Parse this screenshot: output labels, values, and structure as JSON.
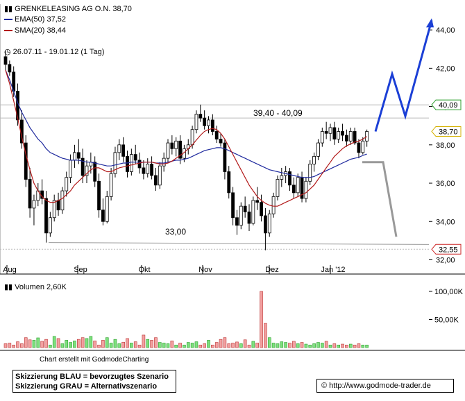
{
  "header": {
    "title": "GRENKELEASING AG O.N. 38,70",
    "ema_label": "EMA(50) 37,52",
    "sma_label": "SMA(20) 38,44",
    "period": "26.07.11 - 19.01.12 (1 Tag)",
    "ema_color": "#1f2a9e",
    "sma_color": "#b31b1b"
  },
  "volume": {
    "label": "Volumen 2,60K"
  },
  "footer": {
    "credit": "Chart erstellt mit GodmodeCharting",
    "note_blue": "Skizzierung BLAU = bevorzugtes Szenario",
    "note_gray": "Skizzierung GRAU = Alternativszenario",
    "url": "© http://www.godmode-trader.de"
  },
  "chart_data": {
    "type": "candlestick",
    "x_labels": [
      "Aug",
      "Sep",
      "Okt",
      "Nov",
      "Dez",
      "Jan '12"
    ],
    "y_ticks": [
      "44,00",
      "42,00",
      "40,00",
      "38,00",
      "36,00",
      "34,00",
      "32,00"
    ],
    "ylim": [
      31.8,
      45.2
    ],
    "price_markers": [
      {
        "label": "40,09",
        "value": 40.09,
        "color": "#2a9d2a"
      },
      {
        "label": "38,70",
        "value": 38.7,
        "color": "#d4b000"
      },
      {
        "label": "32,55",
        "value": 32.55,
        "color": "#cc2222"
      }
    ],
    "annotations": [
      {
        "text": "39,40 - 40,09",
        "value": 39.4
      },
      {
        "text": "33,00",
        "value": 33.0
      }
    ],
    "support_line": {
      "from": 32.9,
      "to": 32.9
    },
    "volume_ticks": [
      "100,00K",
      "50,00K"
    ],
    "volume_max": 2.6,
    "ohlc": [
      [
        42.6,
        42.9,
        41.9,
        42.2
      ],
      [
        42.2,
        42.4,
        41.6,
        41.8
      ],
      [
        41.8,
        42.1,
        40.5,
        40.8
      ],
      [
        40.8,
        41.2,
        39.0,
        39.3
      ],
      [
        39.3,
        39.8,
        37.8,
        38.1
      ],
      [
        38.1,
        38.5,
        35.8,
        36.2
      ],
      [
        36.2,
        36.8,
        34.2,
        34.7
      ],
      [
        34.7,
        35.4,
        33.8,
        35.1
      ],
      [
        35.1,
        36.0,
        34.8,
        35.6
      ],
      [
        35.6,
        36.2,
        34.9,
        35.2
      ],
      [
        35.2,
        35.6,
        32.9,
        33.4
      ],
      [
        33.4,
        34.5,
        33.2,
        34.2
      ],
      [
        34.2,
        35.4,
        34.0,
        35.1
      ],
      [
        35.1,
        35.5,
        34.3,
        34.6
      ],
      [
        34.6,
        35.8,
        34.4,
        35.6
      ],
      [
        35.6,
        36.6,
        35.3,
        36.3
      ],
      [
        36.3,
        37.5,
        36.0,
        37.2
      ],
      [
        37.2,
        38.0,
        36.8,
        37.6
      ],
      [
        37.6,
        38.3,
        37.0,
        37.3
      ],
      [
        37.3,
        37.8,
        36.0,
        36.4
      ],
      [
        36.4,
        37.2,
        36.0,
        36.9
      ],
      [
        36.9,
        37.6,
        36.5,
        37.1
      ],
      [
        37.1,
        37.4,
        35.8,
        36.1
      ],
      [
        36.1,
        36.5,
        34.2,
        34.6
      ],
      [
        34.6,
        35.2,
        33.8,
        34.0
      ],
      [
        34.0,
        35.6,
        33.9,
        35.3
      ],
      [
        35.3,
        36.8,
        35.1,
        36.5
      ],
      [
        36.5,
        37.9,
        36.3,
        37.6
      ],
      [
        37.6,
        38.3,
        37.2,
        38.0
      ],
      [
        38.0,
        38.4,
        37.1,
        37.4
      ],
      [
        37.4,
        37.7,
        36.3,
        36.6
      ],
      [
        36.6,
        37.8,
        36.4,
        37.5
      ],
      [
        37.5,
        38.0,
        37.0,
        37.2
      ],
      [
        37.2,
        37.6,
        36.5,
        36.8
      ],
      [
        36.8,
        37.2,
        36.2,
        36.5
      ],
      [
        36.5,
        37.3,
        36.3,
        37.0
      ],
      [
        37.0,
        37.4,
        36.2,
        36.4
      ],
      [
        36.4,
        36.8,
        35.6,
        35.9
      ],
      [
        35.9,
        37.1,
        35.7,
        36.9
      ],
      [
        36.9,
        37.6,
        36.6,
        37.3
      ],
      [
        37.3,
        38.3,
        37.1,
        38.1
      ],
      [
        38.1,
        38.5,
        37.5,
        37.8
      ],
      [
        37.8,
        38.4,
        37.4,
        38.2
      ],
      [
        38.2,
        38.5,
        37.0,
        37.3
      ],
      [
        37.3,
        38.0,
        37.1,
        37.8
      ],
      [
        37.8,
        38.3,
        37.5,
        38.0
      ],
      [
        38.0,
        39.0,
        37.8,
        38.8
      ],
      [
        38.8,
        39.8,
        38.6,
        39.6
      ],
      [
        39.6,
        40.1,
        39.2,
        39.4
      ],
      [
        39.4,
        39.8,
        38.8,
        39.0
      ],
      [
        39.0,
        39.5,
        38.6,
        39.3
      ],
      [
        39.3,
        39.6,
        38.5,
        38.7
      ],
      [
        38.7,
        39.0,
        38.1,
        38.3
      ],
      [
        38.3,
        38.6,
        37.9,
        38.1
      ],
      [
        38.1,
        38.3,
        36.2,
        36.6
      ],
      [
        36.6,
        36.9,
        35.2,
        35.5
      ],
      [
        35.5,
        35.8,
        33.8,
        34.2
      ],
      [
        34.2,
        34.6,
        33.3,
        33.8
      ],
      [
        33.8,
        35.0,
        33.6,
        34.8
      ],
      [
        34.8,
        35.3,
        34.2,
        34.5
      ],
      [
        34.5,
        34.9,
        33.5,
        33.9
      ],
      [
        33.9,
        35.3,
        33.8,
        35.1
      ],
      [
        35.1,
        35.8,
        34.6,
        35.0
      ],
      [
        35.0,
        35.4,
        34.0,
        34.3
      ],
      [
        34.3,
        34.7,
        32.5,
        33.4
      ],
      [
        33.4,
        34.6,
        33.2,
        34.4
      ],
      [
        34.4,
        35.5,
        34.2,
        35.3
      ],
      [
        35.3,
        36.4,
        35.1,
        36.2
      ],
      [
        36.2,
        36.8,
        35.8,
        36.4
      ],
      [
        36.4,
        36.9,
        36.0,
        36.6
      ],
      [
        36.6,
        36.8,
        35.6,
        35.9
      ],
      [
        35.9,
        36.3,
        35.2,
        35.5
      ],
      [
        35.5,
        36.5,
        35.3,
        36.3
      ],
      [
        36.3,
        36.6,
        35.0,
        35.2
      ],
      [
        35.2,
        36.3,
        35.0,
        36.1
      ],
      [
        36.1,
        37.2,
        35.9,
        37.0
      ],
      [
        37.0,
        37.6,
        36.6,
        37.4
      ],
      [
        37.4,
        38.3,
        37.2,
        38.1
      ],
      [
        38.1,
        38.9,
        37.9,
        38.7
      ],
      [
        38.7,
        39.2,
        38.3,
        38.6
      ],
      [
        38.6,
        39.1,
        38.2,
        38.9
      ],
      [
        38.9,
        39.2,
        38.0,
        38.3
      ],
      [
        38.3,
        38.9,
        38.1,
        38.7
      ],
      [
        38.7,
        39.1,
        38.2,
        38.5
      ],
      [
        38.5,
        38.8,
        37.9,
        38.2
      ],
      [
        38.2,
        38.9,
        38.0,
        38.7
      ],
      [
        38.7,
        38.9,
        38.0,
        38.1
      ],
      [
        38.1,
        38.3,
        37.3,
        37.6
      ],
      [
        37.6,
        38.4,
        37.5,
        38.2
      ],
      [
        38.2,
        38.8,
        37.9,
        38.7
      ]
    ],
    "ema50": [
      41.9,
      41.4,
      40.8,
      40.2,
      39.7,
      39.3,
      38.9,
      38.6,
      38.3,
      38.1,
      37.8,
      37.6,
      37.5,
      37.4,
      37.3,
      37.25,
      37.2,
      37.2,
      37.2,
      37.15,
      37.1,
      37.1,
      37.05,
      37.0,
      36.95,
      36.9,
      36.9,
      36.95,
      37.0,
      37.05,
      37.05,
      37.1,
      37.1,
      37.1,
      37.1,
      37.1,
      37.1,
      37.05,
      37.05,
      37.05,
      37.1,
      37.15,
      37.2,
      37.2,
      37.25,
      37.3,
      37.4,
      37.5,
      37.6,
      37.7,
      37.75,
      37.8,
      37.85,
      37.85,
      37.8,
      37.7,
      37.6,
      37.5,
      37.4,
      37.3,
      37.2,
      37.1,
      37.0,
      36.9,
      36.8,
      36.7,
      36.65,
      36.6,
      36.55,
      36.5,
      36.45,
      36.4,
      36.35,
      36.3,
      36.3,
      36.3,
      36.35,
      36.45,
      36.55,
      36.65,
      36.75,
      36.85,
      36.95,
      37.05,
      37.15,
      37.25,
      37.3,
      37.35,
      37.45,
      37.52
    ],
    "sma20": [
      41.9,
      41.2,
      40.3,
      39.4,
      38.4,
      37.5,
      36.7,
      36.0,
      35.6,
      35.3,
      35.1,
      35.0,
      35.0,
      35.1,
      35.2,
      35.4,
      35.6,
      35.9,
      36.1,
      36.3,
      36.5,
      36.7,
      36.8,
      36.8,
      36.7,
      36.6,
      36.6,
      36.7,
      36.8,
      36.85,
      36.9,
      36.95,
      37.0,
      37.05,
      37.1,
      37.1,
      37.1,
      37.05,
      37.0,
      37.0,
      37.05,
      37.15,
      37.3,
      37.45,
      37.6,
      37.8,
      38.0,
      38.25,
      38.5,
      38.7,
      38.8,
      38.85,
      38.8,
      38.6,
      38.3,
      37.9,
      37.5,
      37.1,
      36.7,
      36.3,
      35.9,
      35.6,
      35.3,
      35.1,
      34.95,
      34.85,
      34.8,
      34.8,
      34.9,
      35.0,
      35.1,
      35.2,
      35.3,
      35.4,
      35.5,
      35.7,
      35.9,
      36.2,
      36.5,
      36.8,
      37.1,
      37.4,
      37.6,
      37.8,
      37.95,
      38.05,
      38.15,
      38.2,
      38.3,
      38.44
    ],
    "volume_values": [
      0.18,
      0.21,
      0.12,
      0.27,
      0.18,
      0.46,
      0.36,
      0.34,
      0.45,
      0.29,
      0.38,
      0.12,
      0.52,
      0.42,
      0.18,
      0.34,
      0.24,
      0.31,
      0.38,
      0.46,
      0.42,
      0.52,
      0.31,
      0.12,
      0.34,
      0.46,
      0.21,
      0.38,
      0.18,
      0.25,
      0.42,
      0.21,
      0.27,
      0.12,
      0.58,
      0.38,
      0.34,
      0.46,
      0.24,
      0.21,
      0.18,
      0.31,
      0.12,
      0.21,
      0.12,
      0.24,
      0.21,
      0.27,
      0.12,
      0.18,
      0.34,
      0.12,
      0.24,
      0.38,
      0.46,
      0.18,
      0.21,
      0.26,
      0.18,
      0.36,
      0.12,
      0.29,
      0.21,
      2.6,
      1.12,
      0.46,
      0.21,
      0.18,
      0.27,
      0.24,
      0.21,
      0.29,
      0.18,
      0.24,
      0.16,
      0.12,
      0.18,
      0.24,
      0.21,
      0.29,
      0.12,
      0.18,
      0.12,
      0.16,
      0.12,
      0.16,
      0.12,
      0.18,
      0.12,
      0.12
    ],
    "scenario_blue": [
      [
        38.7
      ],
      [
        41.7
      ],
      [
        39.5
      ],
      [
        44.5
      ]
    ],
    "scenario_gray": [
      [
        37.1
      ],
      [
        37.1
      ],
      [
        33.2
      ]
    ]
  }
}
